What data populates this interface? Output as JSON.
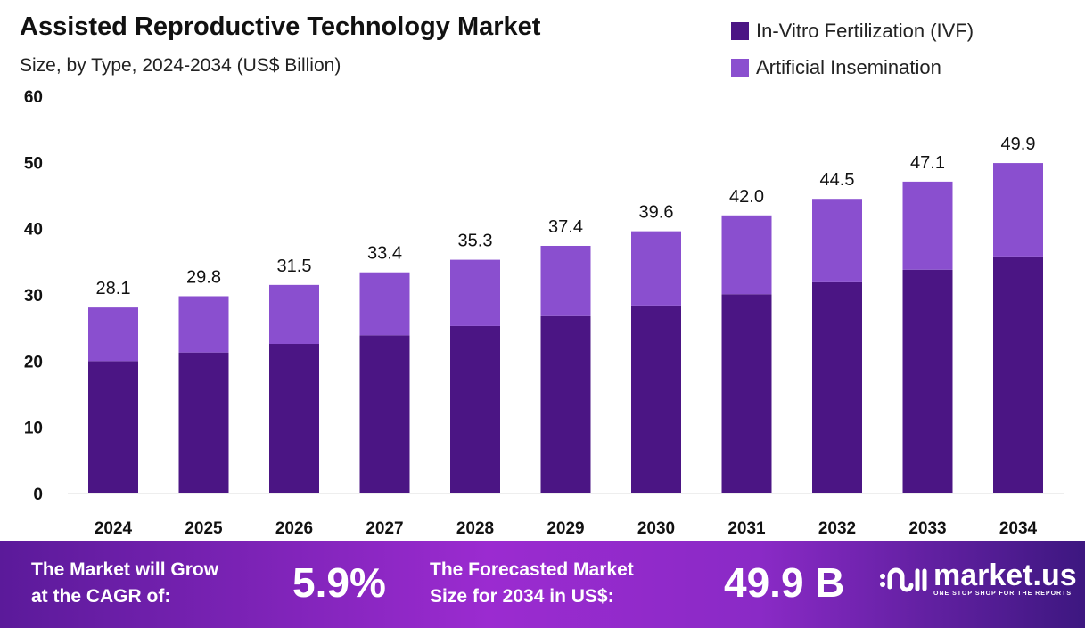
{
  "chart_data": {
    "type": "bar",
    "stacked": true,
    "title": "Assisted Reproductive Technology Market",
    "subtitle": "Size, by Type, 2024-2034 (US$ Billion)",
    "categories": [
      "2024",
      "2025",
      "2026",
      "2027",
      "2028",
      "2029",
      "2030",
      "2031",
      "2032",
      "2033",
      "2034"
    ],
    "series": [
      {
        "name": "In-Vitro Fertilization (IVF)",
        "color": "#4b1584",
        "values": [
          20.0,
          21.3,
          22.6,
          23.9,
          25.3,
          26.8,
          28.4,
          30.1,
          31.9,
          33.8,
          35.8
        ]
      },
      {
        "name": "Artificial Insemination",
        "color": "#8a4fcf",
        "values": [
          8.1,
          8.5,
          8.9,
          9.5,
          10.0,
          10.6,
          11.2,
          11.9,
          12.6,
          13.3,
          14.1
        ]
      }
    ],
    "totals": [
      "28.1",
      "29.8",
      "31.5",
      "33.4",
      "35.3",
      "37.4",
      "39.6",
      "42.0",
      "44.5",
      "47.1",
      "49.9"
    ],
    "ylim": [
      0,
      60
    ],
    "yticks": [
      "0",
      "10",
      "20",
      "30",
      "40",
      "50",
      "60"
    ],
    "grid": false,
    "legend": "top-right"
  },
  "footer": {
    "cagr_text_1": "The Market will Grow",
    "cagr_text_2": "at the CAGR of:",
    "cagr_value": "5.9%",
    "forecast_text_1": "The Forecasted Market",
    "forecast_text_2": "Size for 2034 in US$:",
    "forecast_value": "49.9 B",
    "logo_name": "market.us",
    "logo_tagline": "ONE STOP SHOP FOR THE REPORTS"
  }
}
